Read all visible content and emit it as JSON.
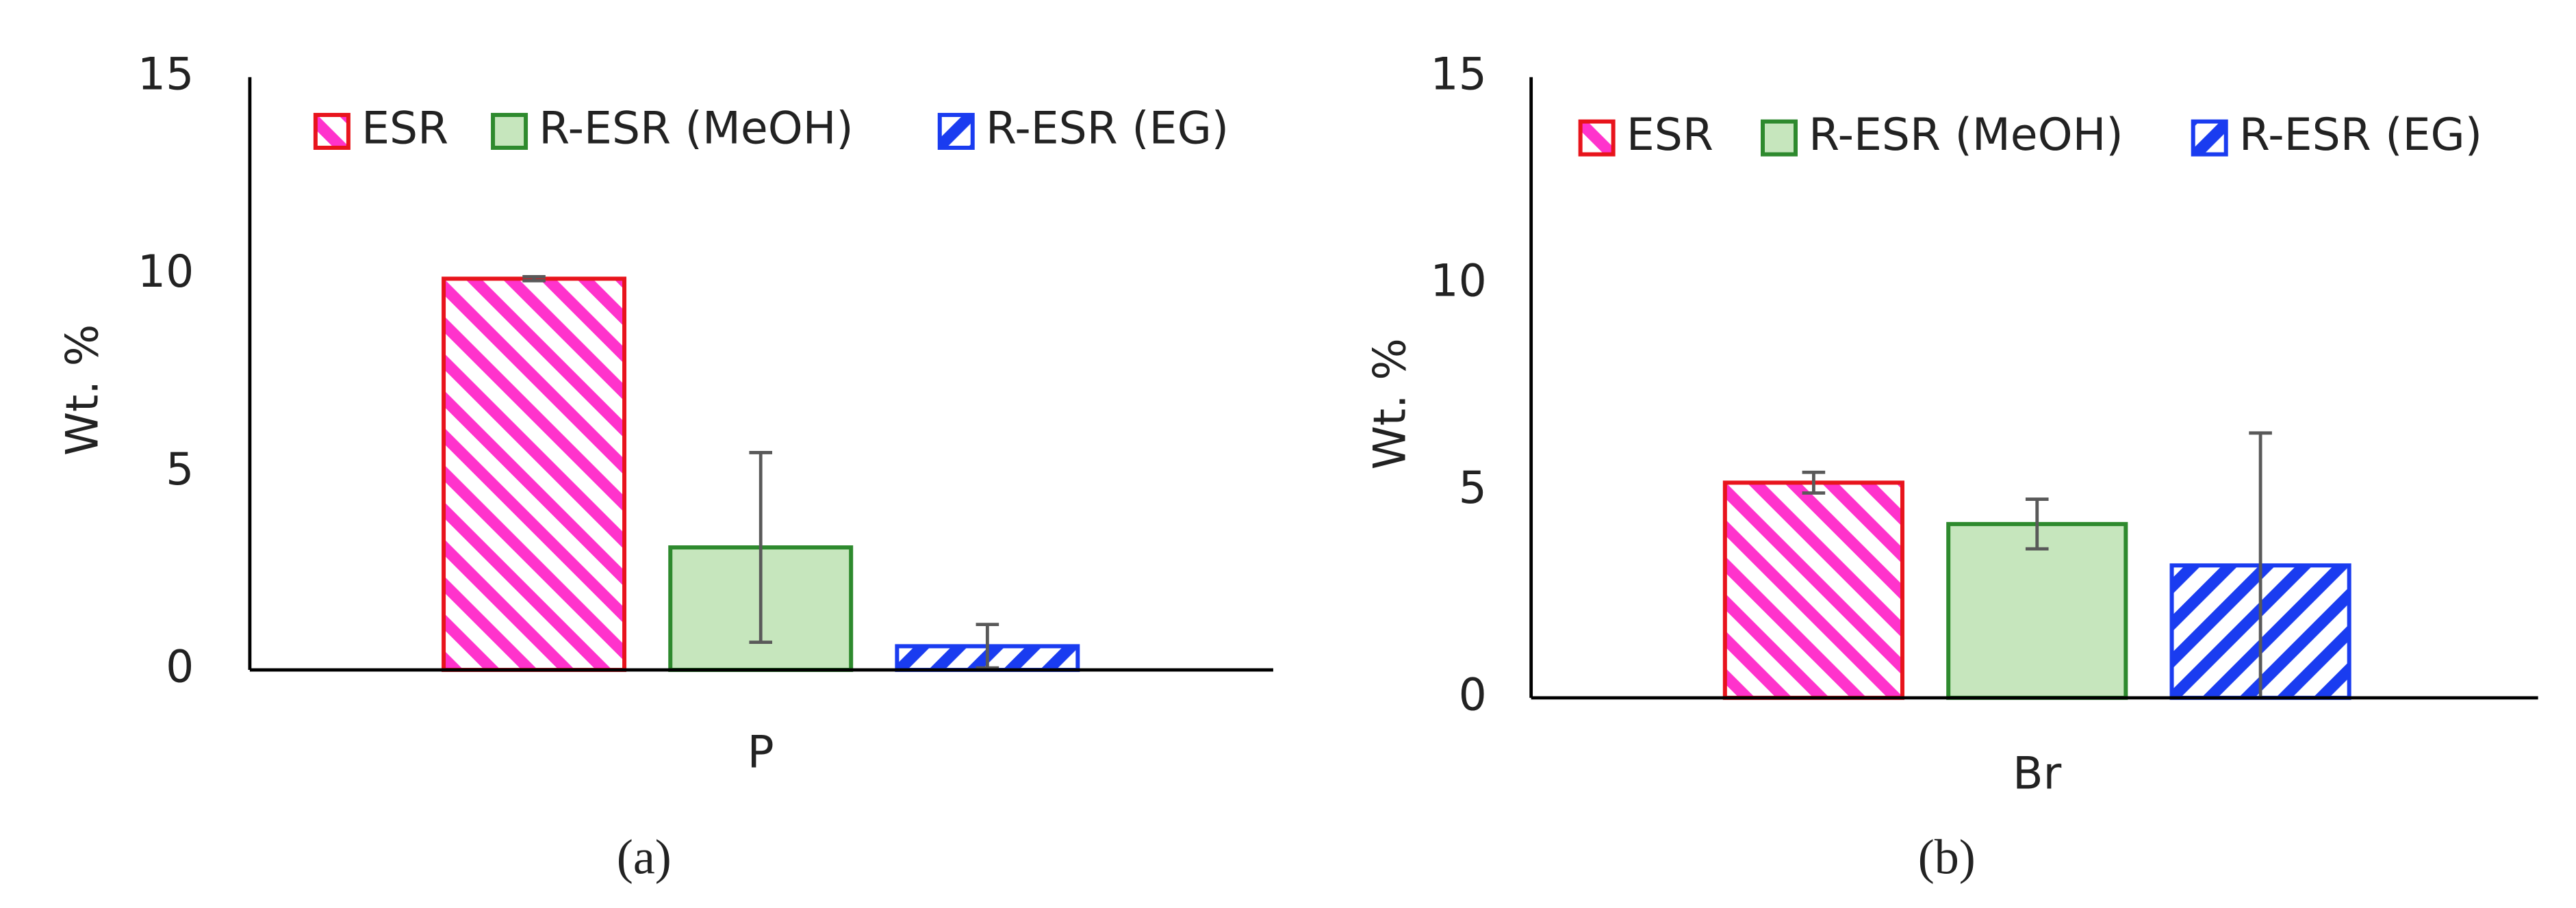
{
  "chart_data": [
    {
      "type": "bar",
      "label": "(a)",
      "ylabel": "Wt. %",
      "categories": [
        "P"
      ],
      "ylim": [
        0,
        15
      ],
      "yticks": [
        0,
        5,
        10,
        15
      ],
      "series": [
        {
          "name": "ESR",
          "color": "#ff33cc",
          "edgecolor": "#e8141c",
          "pattern": "hatch-down",
          "values": [
            9.9
          ],
          "errors": [
            0.05
          ]
        },
        {
          "name": "R-ESR (MeOH)",
          "color": "#c6e6bd",
          "edgecolor": "#2e8a2e",
          "pattern": "solid",
          "values": [
            3.1
          ],
          "errors": [
            2.4
          ]
        },
        {
          "name": "R-ESR (EG)",
          "color": "#1a3cf0",
          "edgecolor": "#1a3cf0",
          "pattern": "hatch-up",
          "values": [
            0.6
          ],
          "errors": [
            0.55
          ]
        }
      ]
    },
    {
      "type": "bar",
      "label": "(b)",
      "ylabel": "Wt. %",
      "categories": [
        "Br"
      ],
      "ylim": [
        0,
        15
      ],
      "yticks": [
        0,
        5,
        10,
        15
      ],
      "series": [
        {
          "name": "ESR",
          "color": "#ff33cc",
          "edgecolor": "#e8141c",
          "pattern": "hatch-down",
          "values": [
            5.2
          ],
          "errors": [
            0.25
          ]
        },
        {
          "name": "R-ESR (MeOH)",
          "color": "#c6e6bd",
          "edgecolor": "#2e8a2e",
          "pattern": "solid",
          "values": [
            4.2
          ],
          "errors": [
            0.6
          ]
        },
        {
          "name": "R-ESR (EG)",
          "color": "#1a3cf0",
          "edgecolor": "#1a3cf0",
          "pattern": "hatch-up",
          "values": [
            3.2
          ],
          "errors": [
            3.2
          ]
        }
      ]
    }
  ]
}
